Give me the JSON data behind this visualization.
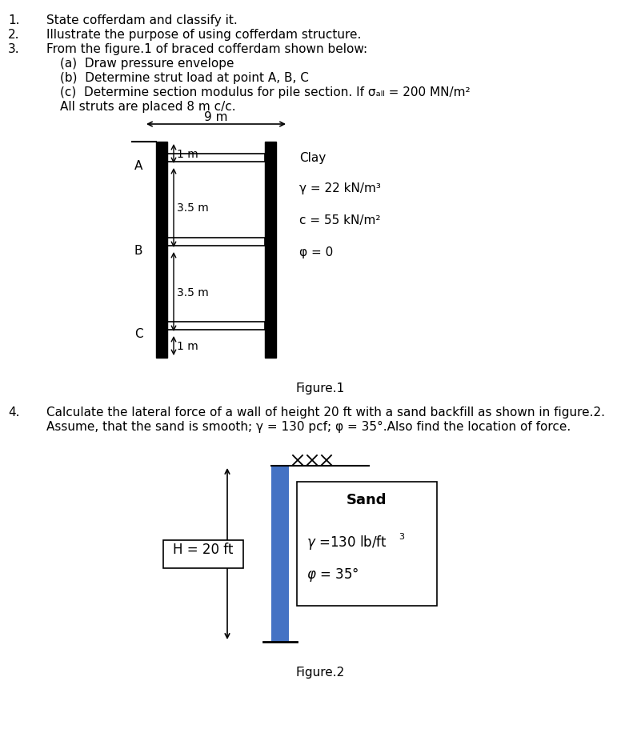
{
  "bg_color": "#ffffff",
  "text_color": "#000000",
  "numbered_items": [
    "State cofferdam and classify it.",
    "Illustrate the purpose of using cofferdam structure.",
    "From the figure.1 of braced cofferdam shown below:"
  ],
  "sub_items": [
    "(a)  Draw pressure envelope",
    "(b)  Determine strut load at point A, B, C",
    "(c)  Determine section modulus for pile section. If σₐₗₗ = 200 MN/m²"
  ],
  "all_struts_text": "All struts are placed 8 m c/c.",
  "fig1_width_label": "9 m",
  "fig1_top_gap": "1 m",
  "fig1_mid1": "3.5 m",
  "fig1_mid2": "3.5 m",
  "fig1_bot_gap": "1 m",
  "fig1_clay_label": "Clay",
  "fig1_gamma": "γ = 22 kN/m³",
  "fig1_c": "c = 55 kN/m²",
  "fig1_phi": "φ = 0",
  "fig1_label": "Figure.1",
  "strut_A": "A",
  "strut_B": "B",
  "strut_C": "C",
  "q4_text1": "Calculate the lateral force of a wall of height 20 ft with a sand backfill as shown in figure.2.",
  "q4_text2": "Assume, that the sand is smooth; γ = 130 pcf; φ = 35°.Also find the location of force.",
  "fig2_H_label": "H = 20 ft",
  "fig2_sand_label": "Sand",
  "fig2_gamma": "γ =130 lb/ft³",
  "fig2_phi": "φ = 35°",
  "fig2_label": "Figure.2",
  "wall_color": "#4472C4",
  "wall_color2": "#000000"
}
